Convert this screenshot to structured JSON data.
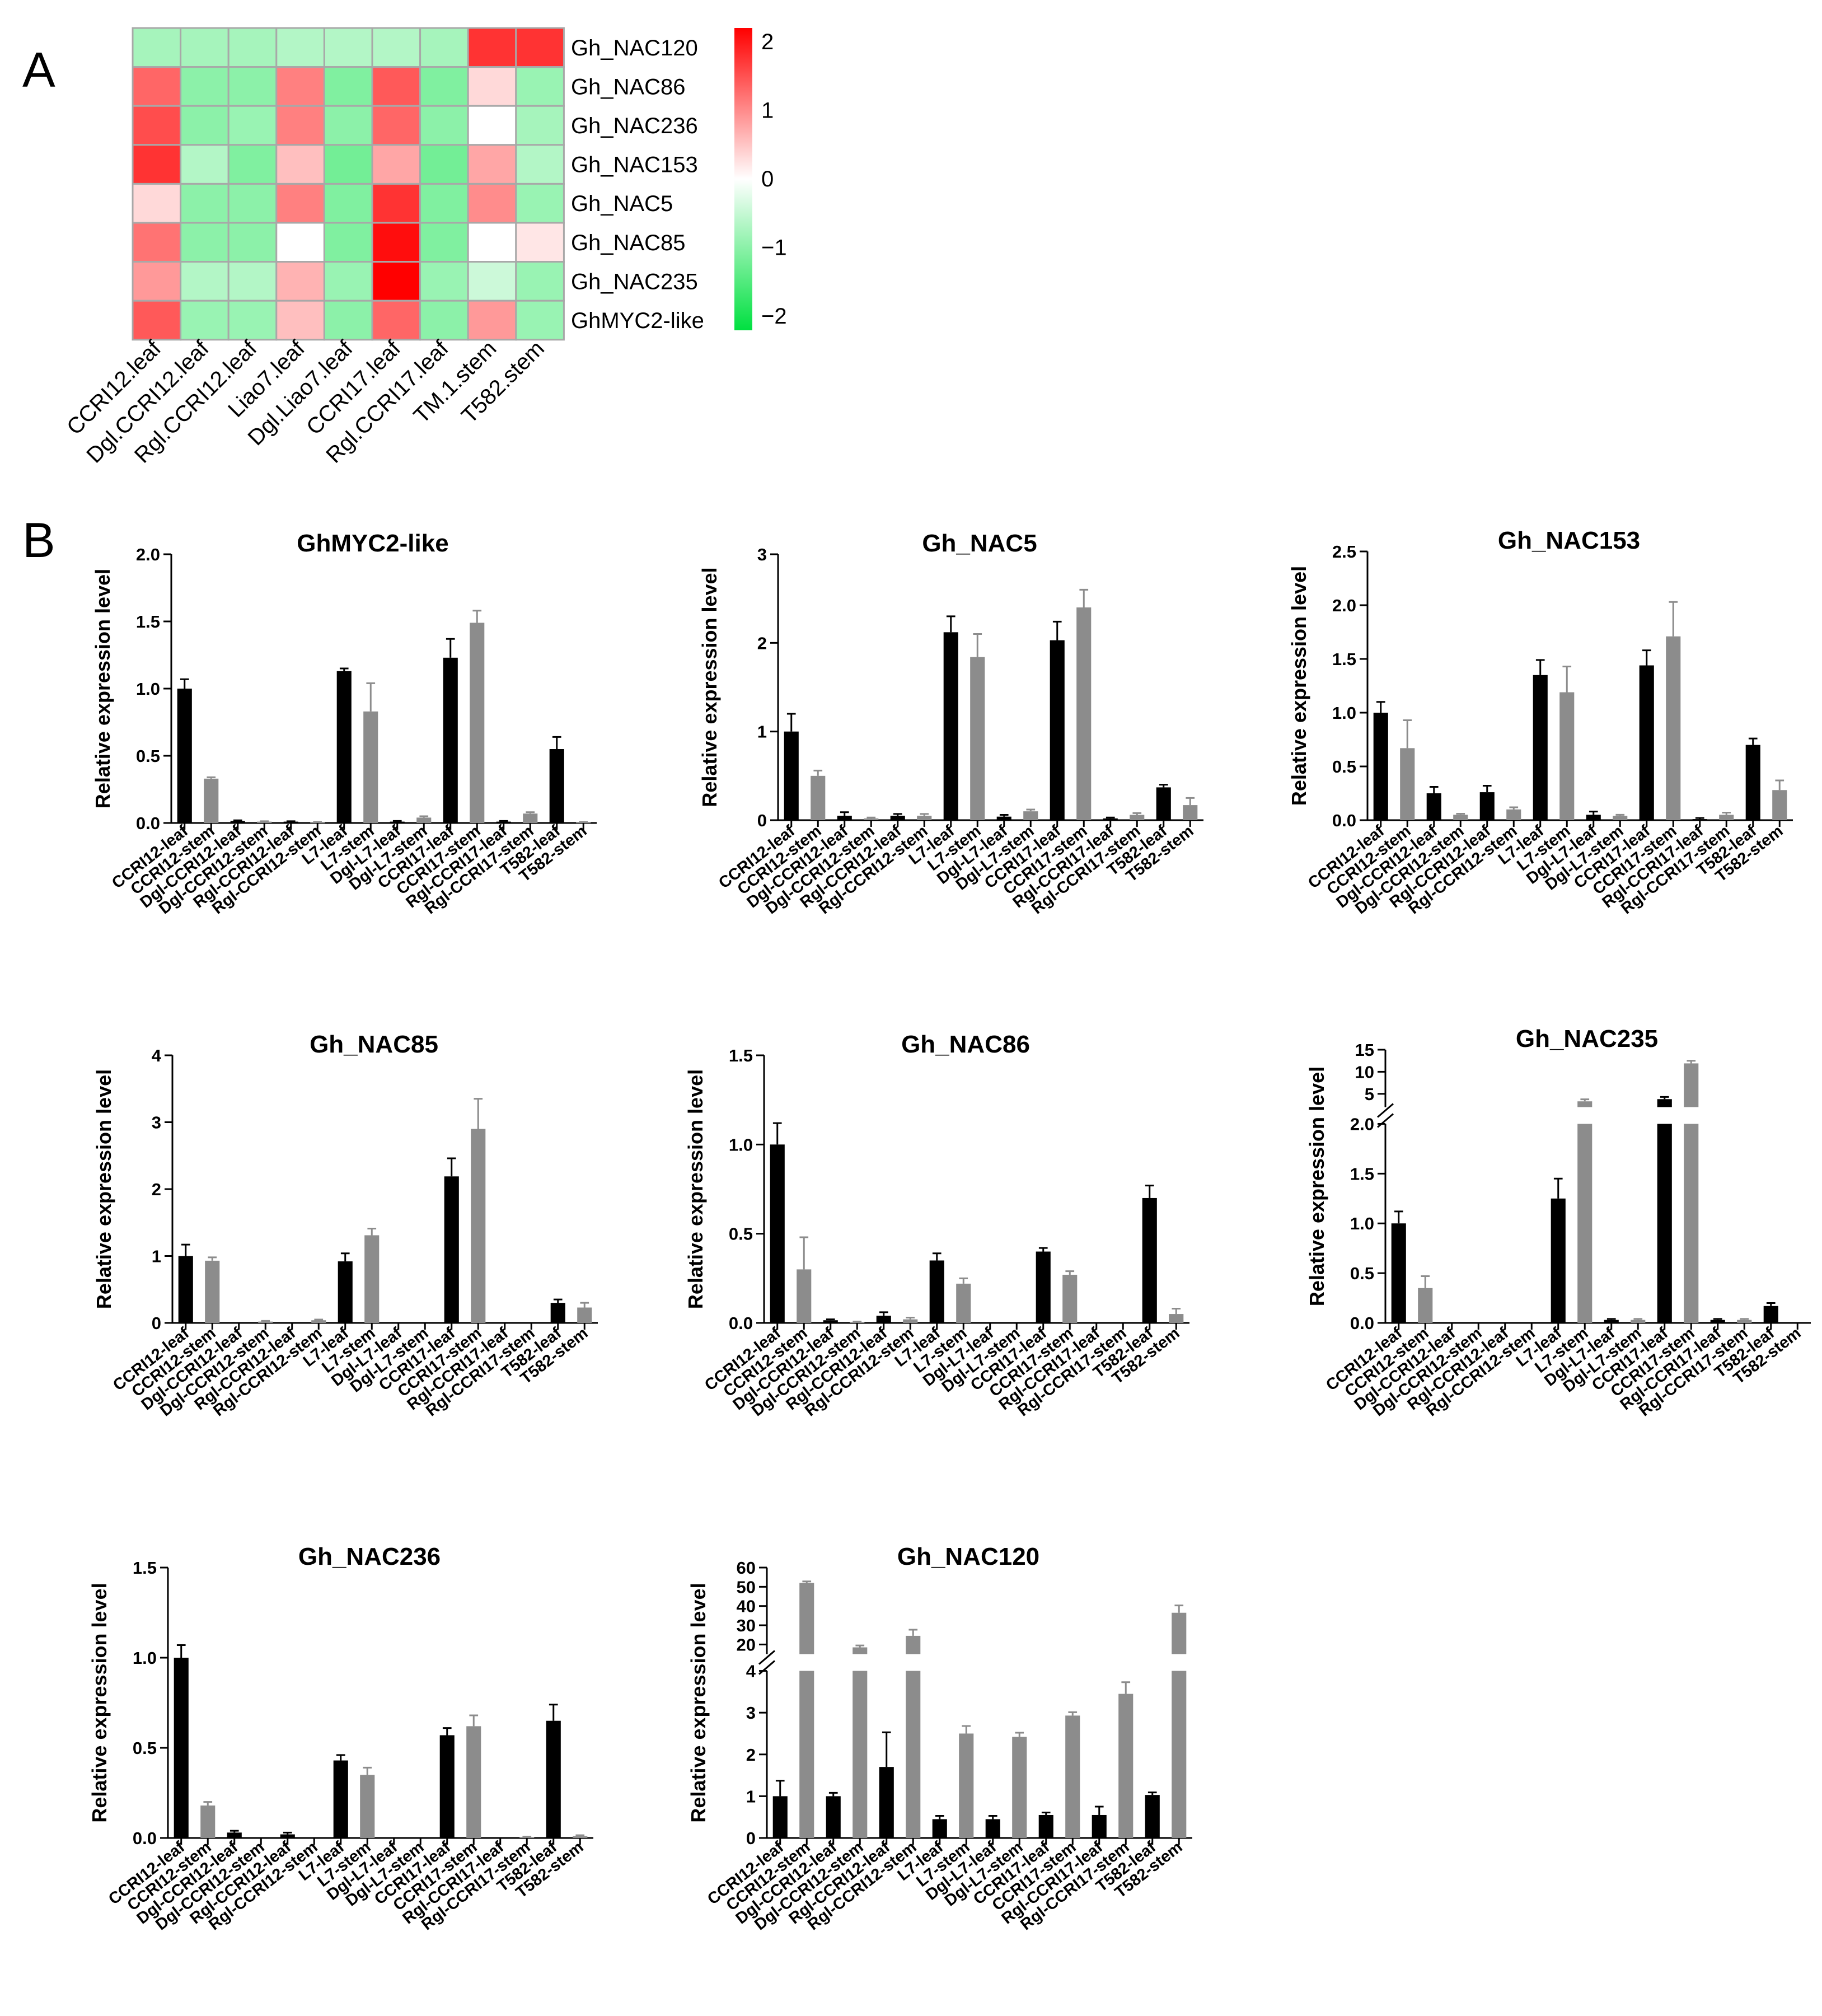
{
  "panel_a_label": "A",
  "panel_b_label": "B",
  "colors": {
    "high": "#ff0000",
    "mid": "#ffffff",
    "low": "#00e040",
    "leaf_bar": "#000000",
    "stem_bar": "#8c8c8c",
    "grid_line": "#a8a8a8"
  },
  "chart_data": [
    {
      "type": "heatmap",
      "columns": [
        "CCRI12.leaf",
        "Dgl.CCRI12.leaf",
        "Rgl.CCRI12.leaf",
        "Liao7.leaf",
        "Dgl.Liao7.leaf",
        "CCRI17.leaf",
        "Rgl.CCRI17.leaf",
        "TM.1.stem",
        "T582.stem"
      ],
      "rows": [
        "Gh_NAC120",
        "Gh_NAC86",
        "Gh_NAC236",
        "Gh_NAC153",
        "Gh_NAC5",
        "Gh_NAC85",
        "Gh_NAC235",
        "GhMYC2-like"
      ],
      "values": [
        [
          -0.7,
          -0.7,
          -0.7,
          -0.6,
          -0.6,
          -0.6,
          -0.7,
          1.6,
          1.6
        ],
        [
          1.2,
          -0.9,
          -0.9,
          1.0,
          -1.0,
          1.3,
          -1.0,
          0.3,
          -0.8
        ],
        [
          1.4,
          -0.9,
          -0.8,
          1.0,
          -0.9,
          1.2,
          -0.9,
          0.0,
          -0.7
        ],
        [
          1.6,
          -0.6,
          -1.0,
          0.5,
          -1.1,
          0.7,
          -1.1,
          0.7,
          -0.6
        ],
        [
          0.3,
          -0.9,
          -0.9,
          1.0,
          -1.0,
          1.6,
          -1.0,
          0.9,
          -0.8
        ],
        [
          1.1,
          -0.9,
          -0.9,
          0.0,
          -1.0,
          1.9,
          -1.0,
          0.0,
          0.2
        ],
        [
          0.8,
          -0.6,
          -0.6,
          0.6,
          -0.8,
          2.0,
          -0.8,
          -0.4,
          -0.8
        ],
        [
          1.3,
          -0.8,
          -0.8,
          0.5,
          -0.9,
          1.2,
          -0.9,
          0.8,
          -0.8
        ]
      ],
      "colorbar": {
        "ticks": [
          "2",
          "1",
          "0",
          "−1",
          "−2"
        ],
        "min": -2,
        "max": 2
      }
    },
    {
      "type": "bar",
      "title": "GhMYC2-like",
      "ylabel": "Relative expression level",
      "categories": [
        "CCRI12-leaf",
        "CCRI12-stem",
        "Dgl-CCRI12-leaf",
        "Dgl-CCRI12-stem",
        "Rgl-CCRI12-leaf",
        "Rgl-CCRI12-stem",
        "L7-leaf",
        "L7-stem",
        "Dgl-L7-leaf",
        "Dgl-L7-stem",
        "CCRI17-leaf",
        "CCRI17-stem",
        "Rgl-CCRI17-leaf",
        "Rgl-CCRI17-stem",
        "T582-leaf",
        "T582-stem"
      ],
      "values": [
        1.0,
        0.33,
        0.015,
        0.01,
        0.01,
        0.005,
        1.13,
        0.83,
        0.01,
        0.04,
        1.23,
        1.49,
        0.01,
        0.07,
        0.55,
        0.005
      ],
      "errors": [
        0.07,
        0.01,
        0.005,
        0.003,
        0.003,
        0.002,
        0.02,
        0.21,
        0.005,
        0.01,
        0.14,
        0.09,
        0.005,
        0.01,
        0.09,
        0.002
      ],
      "ylim": [
        0,
        2.0
      ],
      "yticks": [
        "0.0",
        "0.5",
        "1.0",
        "1.5",
        "2.0"
      ],
      "ytick_values": [
        0,
        0.5,
        1.0,
        1.5,
        2.0
      ]
    },
    {
      "type": "bar",
      "title": "Gh_NAC5",
      "ylabel": "Relative expression level",
      "categories": [
        "CCRI12-leaf",
        "CCRI12-stem",
        "Dgl-CCRI12-leaf",
        "Dgl-CCRI12-stem",
        "Rgl-CCRI12-leaf",
        "Rgl-CCRI12-stem",
        "L7-leaf",
        "L7-stem",
        "Dgl-L7-leaf",
        "Dgl-L7-stem",
        "CCRI17-leaf",
        "CCRI17-stem",
        "Rgl-CCRI17-leaf",
        "Rgl-CCRI17-stem",
        "T582-leaf",
        "T582-stem"
      ],
      "values": [
        1.0,
        0.5,
        0.05,
        0.02,
        0.05,
        0.05,
        2.12,
        1.84,
        0.04,
        0.1,
        2.03,
        2.4,
        0.02,
        0.06,
        0.37,
        0.17
      ],
      "errors": [
        0.2,
        0.06,
        0.04,
        0.01,
        0.02,
        0.02,
        0.18,
        0.26,
        0.02,
        0.02,
        0.21,
        0.2,
        0.01,
        0.02,
        0.03,
        0.08
      ],
      "ylim": [
        0,
        3
      ],
      "yticks": [
        "0",
        "1",
        "2",
        "3"
      ],
      "ytick_values": [
        0,
        1,
        2,
        3
      ]
    },
    {
      "type": "bar",
      "title": "Gh_NAC153",
      "ylabel": "Relative expression level",
      "categories": [
        "CCRI12-leaf",
        "CCRI12-stem",
        "Dgl-CCRI12-leaf",
        "Dgl-CCRI12-stem",
        "Rgl-CCRI12-leaf",
        "Rgl-CCRI12-stem",
        "L7-leaf",
        "L7-stem",
        "Dgl-L7-leaf",
        "Dgl-L7-stem",
        "CCRI17-leaf",
        "CCRI17-stem",
        "Rgl-CCRI17-leaf",
        "Rgl-CCRI17-stem",
        "T582-leaf",
        "T582-stem"
      ],
      "values": [
        1.0,
        0.67,
        0.25,
        0.05,
        0.26,
        0.1,
        1.35,
        1.19,
        0.05,
        0.04,
        1.44,
        1.71,
        0.01,
        0.05,
        0.7,
        0.28
      ],
      "errors": [
        0.1,
        0.26,
        0.06,
        0.01,
        0.06,
        0.02,
        0.14,
        0.24,
        0.03,
        0.01,
        0.14,
        0.32,
        0.01,
        0.02,
        0.06,
        0.09
      ],
      "ylim": [
        0,
        2.5
      ],
      "yticks": [
        "0.0",
        "0.5",
        "1.0",
        "1.5",
        "2.0",
        "2.5"
      ],
      "ytick_values": [
        0,
        0.5,
        1.0,
        1.5,
        2.0,
        2.5
      ]
    },
    {
      "type": "bar",
      "title": "Gh_NAC85",
      "ylabel": "Relative expression level",
      "categories": [
        "CCRI12-leaf",
        "CCRI12-stem",
        "Dgl-CCRI12-leaf",
        "Dgl-CCRI12-stem",
        "Rgl-CCRI12-leaf",
        "Rgl-CCRI12-stem",
        "L7-leaf",
        "L7-stem",
        "Dgl-L7-leaf",
        "Dgl-L7-stem",
        "CCRI17-leaf",
        "CCRI17-stem",
        "Rgl-CCRI17-leaf",
        "Rgl-CCRI17-stem",
        "T582-leaf",
        "T582-stem"
      ],
      "values": [
        1.0,
        0.93,
        0.0,
        0.02,
        0.0,
        0.04,
        0.92,
        1.31,
        0.0,
        0.0,
        2.19,
        2.9,
        0.0,
        0.0,
        0.3,
        0.23
      ],
      "errors": [
        0.17,
        0.05,
        0.0,
        0.01,
        0.0,
        0.01,
        0.12,
        0.1,
        0.0,
        0.0,
        0.27,
        0.45,
        0.0,
        0.0,
        0.05,
        0.07
      ],
      "ylim": [
        0,
        4
      ],
      "yticks": [
        "0",
        "1",
        "2",
        "3",
        "4"
      ],
      "ytick_values": [
        0,
        1,
        2,
        3,
        4
      ]
    },
    {
      "type": "bar",
      "title": "Gh_NAC86",
      "ylabel": "Relative expression level",
      "categories": [
        "CCRI12-leaf",
        "CCRI12-stem",
        "Dgl-CCRI12-leaf",
        "Dgl-CCRI12-stem",
        "Rgl-CCRI12-leaf",
        "Rgl-CCRI12-stem",
        "L7-leaf",
        "L7-stem",
        "Dgl-L7-leaf",
        "Dgl-L7-stem",
        "CCRI17-leaf",
        "CCRI17-stem",
        "Rgl-CCRI17-leaf",
        "Rgl-CCRI17-stem",
        "T582-leaf",
        "T582-stem"
      ],
      "values": [
        1.0,
        0.3,
        0.015,
        0.005,
        0.04,
        0.02,
        0.35,
        0.22,
        0.0,
        0.0,
        0.4,
        0.27,
        0.0,
        0.0,
        0.7,
        0.05
      ],
      "errors": [
        0.12,
        0.18,
        0.005,
        0.002,
        0.02,
        0.01,
        0.04,
        0.03,
        0.0,
        0.0,
        0.02,
        0.02,
        0.0,
        0.0,
        0.07,
        0.03
      ],
      "ylim": [
        0,
        1.5
      ],
      "yticks": [
        "0.0",
        "0.5",
        "1.0",
        "1.5"
      ],
      "ytick_values": [
        0,
        0.5,
        1.0,
        1.5
      ]
    },
    {
      "type": "bar",
      "title": "Gh_NAC235",
      "ylabel": "Relative expression level",
      "categories": [
        "CCRI12-leaf",
        "CCRI12-stem",
        "Dgl-CCRI12-leaf",
        "Dgl-CCRI12-stem",
        "Rgl-CCRI12-leaf",
        "Rgl-CCRI12-stem",
        "L7-leaf",
        "L7-stem",
        "Dgl-L7-leaf",
        "Dgl-L7-stem",
        "CCRI17-leaf",
        "CCRI17-stem",
        "Rgl-CCRI17-leaf",
        "Rgl-CCRI17-stem",
        "T582-leaf",
        "T582-stem"
      ],
      "values": [
        1.0,
        0.35,
        0.0,
        0.0,
        0.0,
        0.0,
        1.25,
        3.3,
        0.03,
        0.03,
        3.8,
        11.9,
        0.03,
        0.03,
        0.17,
        0.0
      ],
      "errors": [
        0.12,
        0.12,
        0.0,
        0.0,
        0.0,
        0.0,
        0.2,
        0.45,
        0.01,
        0.01,
        0.5,
        0.6,
        0.01,
        0.01,
        0.03,
        0.0
      ],
      "axis_break": {
        "lower": [
          0,
          2.0
        ],
        "upper": [
          2.0,
          15
        ]
      },
      "yticks": [
        "0.0",
        "0.5",
        "1.0",
        "1.5",
        "2.0",
        "5",
        "10",
        "15"
      ],
      "ytick_values": [
        0,
        0.5,
        1.0,
        1.5,
        2.0,
        5,
        10,
        15
      ]
    },
    {
      "type": "bar",
      "title": "Gh_NAC236",
      "ylabel": "Relative expression level",
      "categories": [
        "CCRI12-leaf",
        "CCRI12-stem",
        "Dgl-CCRI12-leaf",
        "Dgl-CCRI12-stem",
        "Rgl-CCRI12-leaf",
        "Rgl-CCRI12-stem",
        "L7-leaf",
        "L7-stem",
        "Dgl-L7-leaf",
        "Dgl-L7-stem",
        "CCRI17-leaf",
        "CCRI17-stem",
        "Rgl-CCRI17-leaf",
        "Rgl-CCRI17-stem",
        "T582-leaf",
        "T582-stem"
      ],
      "values": [
        1.0,
        0.18,
        0.03,
        0.0,
        0.02,
        0.0,
        0.43,
        0.35,
        0.0,
        0.0,
        0.57,
        0.62,
        0.0,
        0.005,
        0.65,
        0.01
      ],
      "errors": [
        0.07,
        0.02,
        0.01,
        0.0,
        0.01,
        0.0,
        0.03,
        0.04,
        0.0,
        0.0,
        0.04,
        0.06,
        0.0,
        0.002,
        0.09,
        0.005
      ],
      "ylim": [
        0,
        1.5
      ],
      "yticks": [
        "0.0",
        "0.5",
        "1.0",
        "1.5"
      ],
      "ytick_values": [
        0,
        0.5,
        1.0,
        1.5
      ]
    },
    {
      "type": "bar",
      "title": "Gh_NAC120",
      "ylabel": "Relative expression level",
      "categories": [
        "CCRI12-leaf",
        "CCRI12-stem",
        "Dgl-CCRI12-leaf",
        "Dgl-CCRI12-stem",
        "Rgl-CCRI12-leaf",
        "Rgl-CCRI12-stem",
        "L7-leaf",
        "L7-stem",
        "Dgl-L7-leaf",
        "Dgl-L7-stem",
        "CCRI17-leaf",
        "CCRI17-stem",
        "Rgl-CCRI17-leaf",
        "Rgl-CCRI17-stem",
        "T582-leaf",
        "T582-stem"
      ],
      "values": [
        1.0,
        52,
        1.0,
        18.5,
        1.7,
        24.5,
        0.45,
        2.5,
        0.45,
        2.42,
        0.55,
        2.93,
        0.55,
        3.45,
        1.03,
        36.5
      ],
      "errors": [
        0.37,
        0.8,
        0.08,
        1.0,
        0.83,
        3.2,
        0.08,
        0.18,
        0.08,
        0.1,
        0.06,
        0.08,
        0.2,
        0.28,
        0.06,
        3.8
      ],
      "axis_break": {
        "lower": [
          0,
          4
        ],
        "upper": [
          15,
          60
        ]
      },
      "yticks": [
        "0",
        "1",
        "2",
        "3",
        "4",
        "20",
        "30",
        "40",
        "50",
        "60"
      ],
      "ytick_values": [
        0,
        1,
        2,
        3,
        4,
        20,
        30,
        40,
        50,
        60
      ]
    }
  ]
}
